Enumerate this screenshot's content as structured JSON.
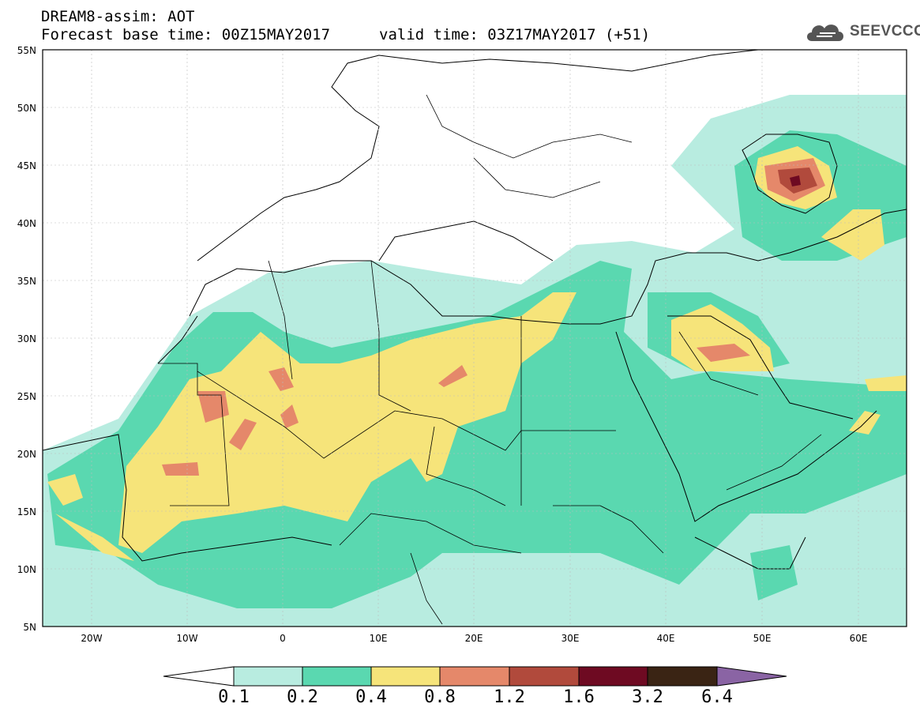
{
  "header": {
    "title": "DREAM8-assim: AOT",
    "base_time": "Forecast base time: 00Z15MAY2017",
    "valid_time": "valid time: 03Z17MAY2017 (+51)"
  },
  "logo": {
    "text": "SEEVCCC",
    "icon": "cloud-icon"
  },
  "axes": {
    "lat_labels": [
      "55N",
      "50N",
      "45N",
      "40N",
      "35N",
      "30N",
      "25N",
      "20N",
      "15N",
      "10N",
      "5N"
    ],
    "lon_labels": [
      "20W",
      "10W",
      "0",
      "10E",
      "20E",
      "30E",
      "40E",
      "50E",
      "60E"
    ]
  },
  "colorbar": {
    "labels": [
      "0.1",
      "0.2",
      "0.4",
      "0.8",
      "1.2",
      "1.6",
      "3.2",
      "6.4"
    ],
    "colors": [
      "#b8ece0",
      "#5ad8b0",
      "#f6e47a",
      "#e5886a",
      "#b14a3c",
      "#6e0a22",
      "#3a2414",
      "#8a64a4"
    ]
  },
  "colors": {
    "c1": "#b8ece0",
    "c2": "#5ad8b0",
    "c3": "#f6e47a",
    "c4": "#e5886a",
    "c5": "#b14a3c",
    "c6": "#6e0a22"
  }
}
